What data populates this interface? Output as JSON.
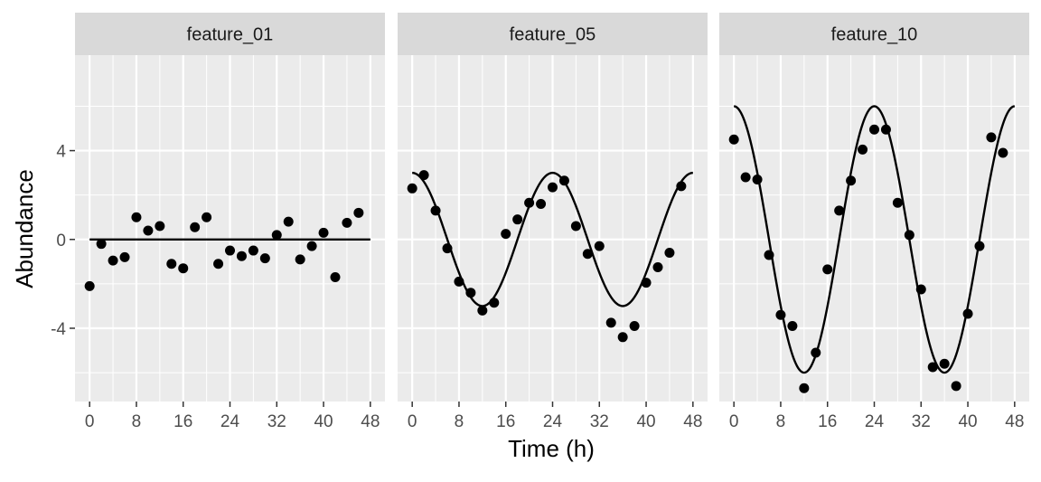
{
  "chart_data": {
    "type": "scatter",
    "xlabel": "Time (h)",
    "ylabel": "Abundance",
    "x_ticks": [
      0,
      8,
      16,
      24,
      32,
      40,
      48
    ],
    "y_ticks": [
      4,
      0,
      -4
    ],
    "xlim": [
      -2.5,
      50.5
    ],
    "ylim": [
      -7.3,
      8.3
    ],
    "grid": true,
    "facets": [
      {
        "label": "feature_01",
        "fit": {
          "amplitude": 0,
          "period": 24,
          "peak": 0
        },
        "points": [
          {
            "x": 0,
            "y": -2.1
          },
          {
            "x": 2,
            "y": -0.2
          },
          {
            "x": 4,
            "y": -0.95
          },
          {
            "x": 6,
            "y": -0.8
          },
          {
            "x": 8,
            "y": 1.0
          },
          {
            "x": 10,
            "y": 0.4
          },
          {
            "x": 12,
            "y": 0.6
          },
          {
            "x": 14,
            "y": -1.1
          },
          {
            "x": 16,
            "y": -1.3
          },
          {
            "x": 18,
            "y": 0.55
          },
          {
            "x": 20,
            "y": 1.0
          },
          {
            "x": 22,
            "y": -1.1
          },
          {
            "x": 24,
            "y": -0.5
          },
          {
            "x": 26,
            "y": -0.75
          },
          {
            "x": 28,
            "y": -0.5
          },
          {
            "x": 30,
            "y": -0.85
          },
          {
            "x": 32,
            "y": 0.2
          },
          {
            "x": 34,
            "y": 0.8
          },
          {
            "x": 36,
            "y": -0.9
          },
          {
            "x": 38,
            "y": -0.3
          },
          {
            "x": 40,
            "y": 0.3
          },
          {
            "x": 42,
            "y": -1.7
          },
          {
            "x": 44,
            "y": 0.75
          },
          {
            "x": 46,
            "y": 1.2
          }
        ]
      },
      {
        "label": "feature_05",
        "fit": {
          "amplitude": 3,
          "period": 24,
          "peak": 0
        },
        "points": [
          {
            "x": 0,
            "y": 2.3
          },
          {
            "x": 2,
            "y": 2.9
          },
          {
            "x": 4,
            "y": 1.3
          },
          {
            "x": 6,
            "y": -0.4
          },
          {
            "x": 8,
            "y": -1.9
          },
          {
            "x": 10,
            "y": -2.4
          },
          {
            "x": 12,
            "y": -3.2
          },
          {
            "x": 14,
            "y": -2.85
          },
          {
            "x": 16,
            "y": 0.25
          },
          {
            "x": 18,
            "y": 0.9
          },
          {
            "x": 20,
            "y": 1.65
          },
          {
            "x": 22,
            "y": 1.6
          },
          {
            "x": 24,
            "y": 2.35
          },
          {
            "x": 26,
            "y": 2.65
          },
          {
            "x": 28,
            "y": 0.6
          },
          {
            "x": 30,
            "y": -0.65
          },
          {
            "x": 32,
            "y": -0.3
          },
          {
            "x": 34,
            "y": -3.75
          },
          {
            "x": 36,
            "y": -4.4
          },
          {
            "x": 38,
            "y": -3.9
          },
          {
            "x": 40,
            "y": -1.95
          },
          {
            "x": 42,
            "y": -1.25
          },
          {
            "x": 44,
            "y": -0.6
          },
          {
            "x": 46,
            "y": 2.4
          }
        ]
      },
      {
        "label": "feature_10",
        "fit": {
          "amplitude": 6,
          "period": 24,
          "peak": 0
        },
        "points": [
          {
            "x": 0,
            "y": 4.5
          },
          {
            "x": 2,
            "y": 2.8
          },
          {
            "x": 4,
            "y": 2.7
          },
          {
            "x": 6,
            "y": -0.7
          },
          {
            "x": 8,
            "y": -3.4
          },
          {
            "x": 10,
            "y": -3.9
          },
          {
            "x": 12,
            "y": -6.7
          },
          {
            "x": 14,
            "y": -5.1
          },
          {
            "x": 16,
            "y": -1.35
          },
          {
            "x": 18,
            "y": 1.3
          },
          {
            "x": 20,
            "y": 2.65
          },
          {
            "x": 22,
            "y": 4.05
          },
          {
            "x": 24,
            "y": 4.95
          },
          {
            "x": 26,
            "y": 4.95
          },
          {
            "x": 28,
            "y": 1.65
          },
          {
            "x": 30,
            "y": 0.2
          },
          {
            "x": 32,
            "y": -2.25
          },
          {
            "x": 34,
            "y": -5.75
          },
          {
            "x": 36,
            "y": -5.6
          },
          {
            "x": 38,
            "y": -6.6
          },
          {
            "x": 40,
            "y": -3.35
          },
          {
            "x": 42,
            "y": -0.3
          },
          {
            "x": 44,
            "y": 4.6
          },
          {
            "x": 46,
            "y": 3.9
          }
        ]
      }
    ]
  }
}
